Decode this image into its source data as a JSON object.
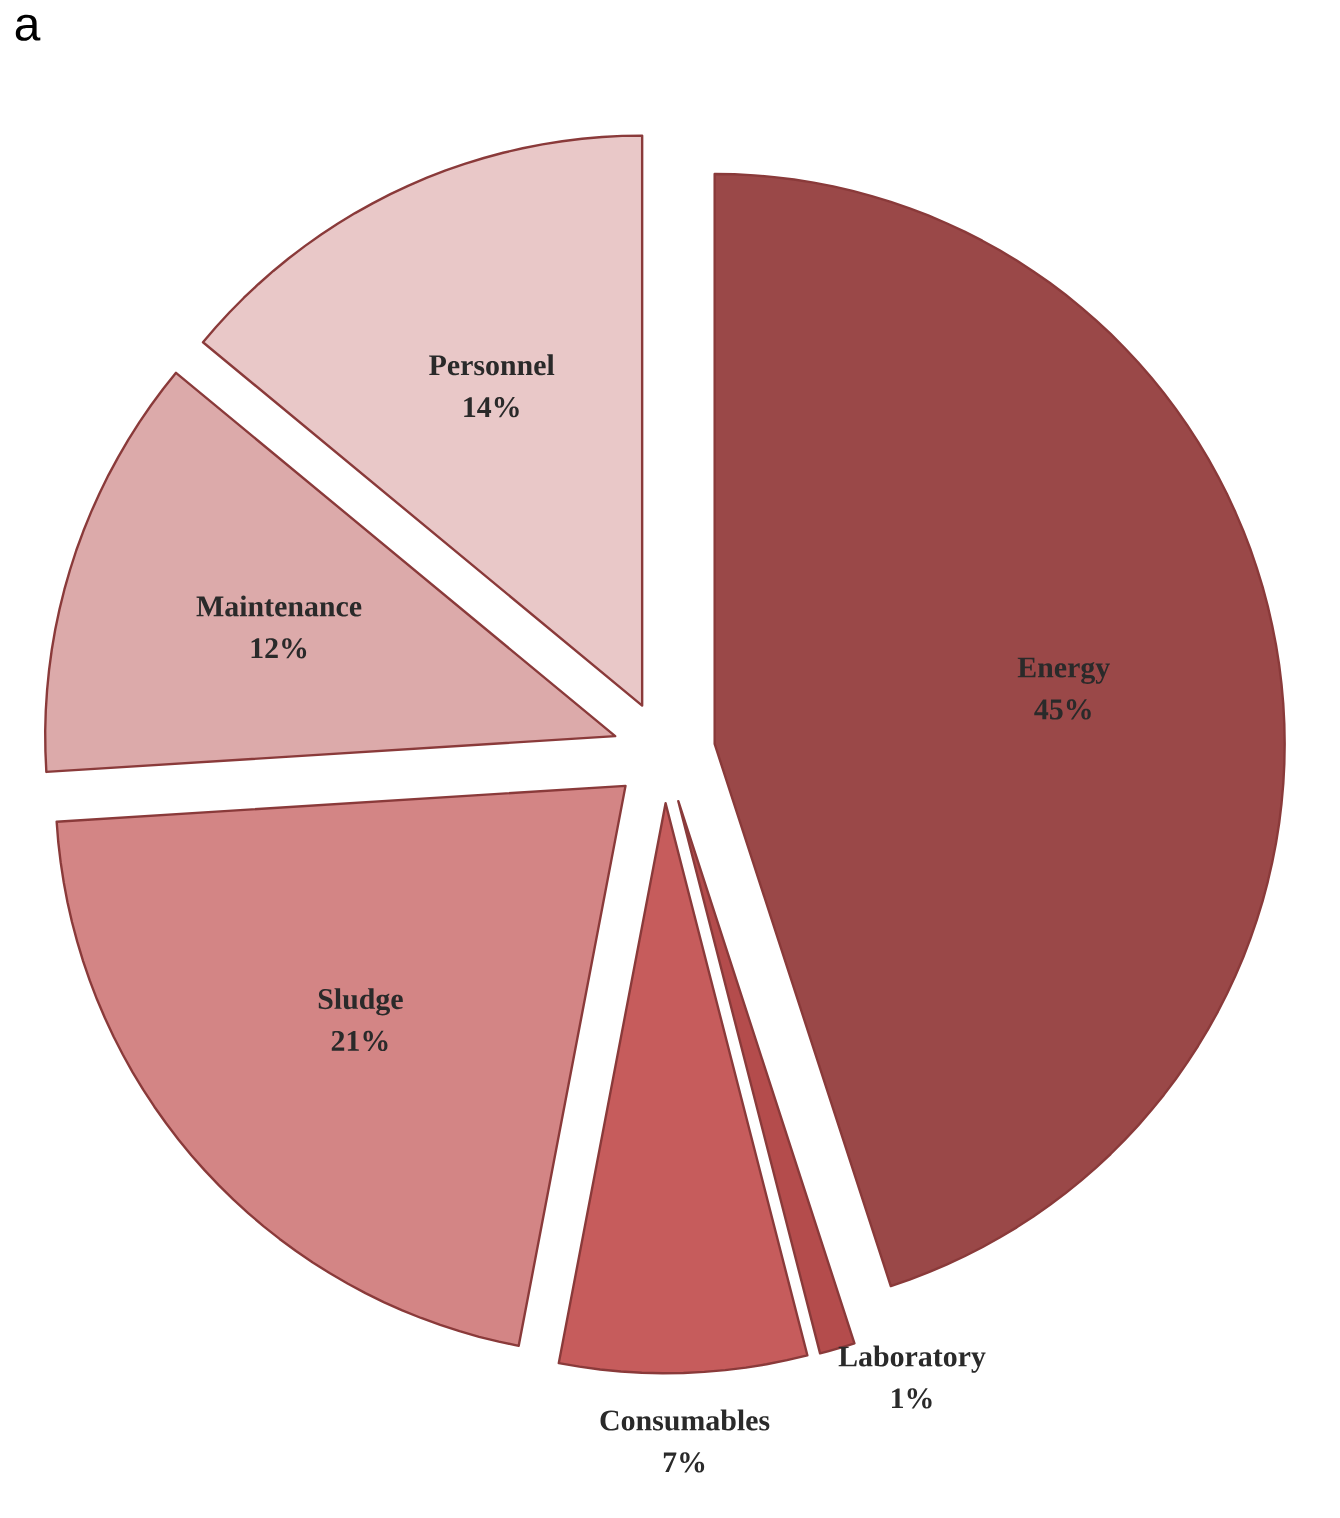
{
  "chart_data": {
    "type": "pie",
    "categories": [
      "Energy",
      "Laboratory",
      "Consumables",
      "Sludge",
      "Maintenance",
      "Personnel"
    ],
    "values": [
      45,
      1,
      7,
      21,
      12,
      14
    ],
    "value_labels": [
      "45%",
      "1%",
      "7%",
      "21%",
      "12%",
      "14%"
    ],
    "colors": [
      "#9a4848",
      "#b44c4c",
      "#c65c5c",
      "#d38585",
      "#dcaaaa",
      "#e9c8c8"
    ],
    "annotations": [
      "a"
    ]
  }
}
